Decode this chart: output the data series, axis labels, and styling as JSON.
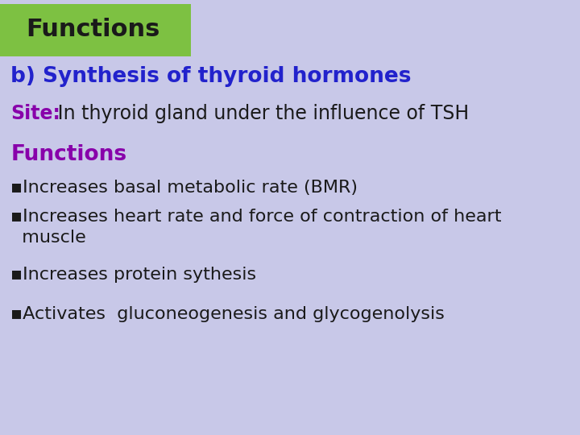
{
  "background_color": "#c8c8e8",
  "title_box_color": "#7dc142",
  "title_text": "Functions",
  "title_text_color": "#1a1a1a",
  "title_fontsize": 22,
  "title_bold": true,
  "heading_text": "b) Synthesis of thyroid hormones",
  "heading_color": "#2222cc",
  "heading_fontsize": 19,
  "heading_bold": true,
  "site_label": "Site:",
  "site_label_color": "#8800aa",
  "site_label_bold": true,
  "site_text": " In thyroid gland under the influence of TSH",
  "site_text_color": "#1a1a1a",
  "site_fontsize": 17,
  "functions_label": "Functions",
  "functions_label_color": "#8800aa",
  "functions_label_fontsize": 19,
  "functions_label_bold": true,
  "bullet_char": "▪",
  "bullet_items": [
    "Increases basal metabolic rate (BMR)",
    "Increases heart rate and force of contraction of heart\n  muscle",
    "Increases protein sythesis",
    "Activates  gluconeogenesis and glycogenolysis"
  ],
  "bullet_color": "#1a1a1a",
  "bullet_fontsize": 16
}
